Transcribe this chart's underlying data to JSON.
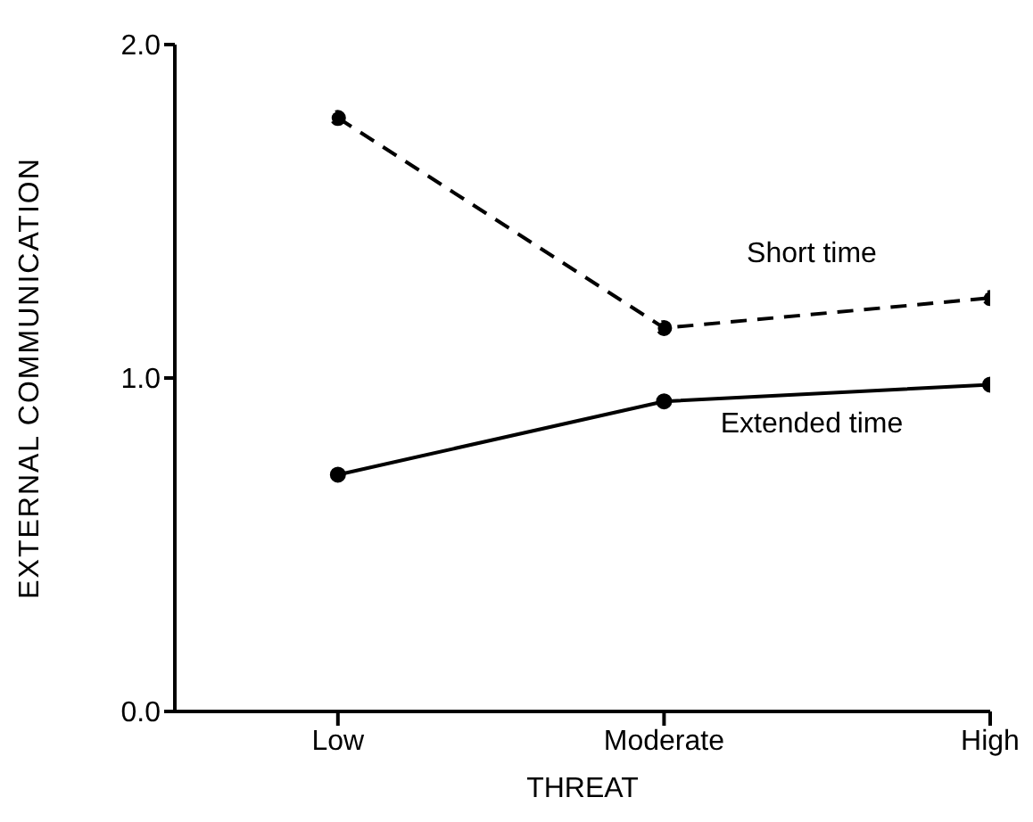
{
  "chart_data": {
    "type": "line",
    "xlabel": "THREAT",
    "ylabel": "EXTERNAL COMMUNICATION",
    "categories": [
      "Low",
      "Moderate",
      "High"
    ],
    "series": [
      {
        "name": "Short time",
        "color": "#000000",
        "values": [
          1.78,
          1.15,
          1.24
        ],
        "line_style": "dashed"
      },
      {
        "name": "Extended time",
        "color": "#000000",
        "values": [
          0.71,
          0.93,
          0.98
        ],
        "line_style": "solid"
      }
    ],
    "ylim": [
      0,
      2
    ],
    "yticks": [
      {
        "value": 0,
        "label": "0.0"
      },
      {
        "value": 1,
        "label": "1.0"
      },
      {
        "value": 2,
        "label": "2.0"
      }
    ],
    "marker": "circle",
    "grid": false,
    "legend": false
  }
}
